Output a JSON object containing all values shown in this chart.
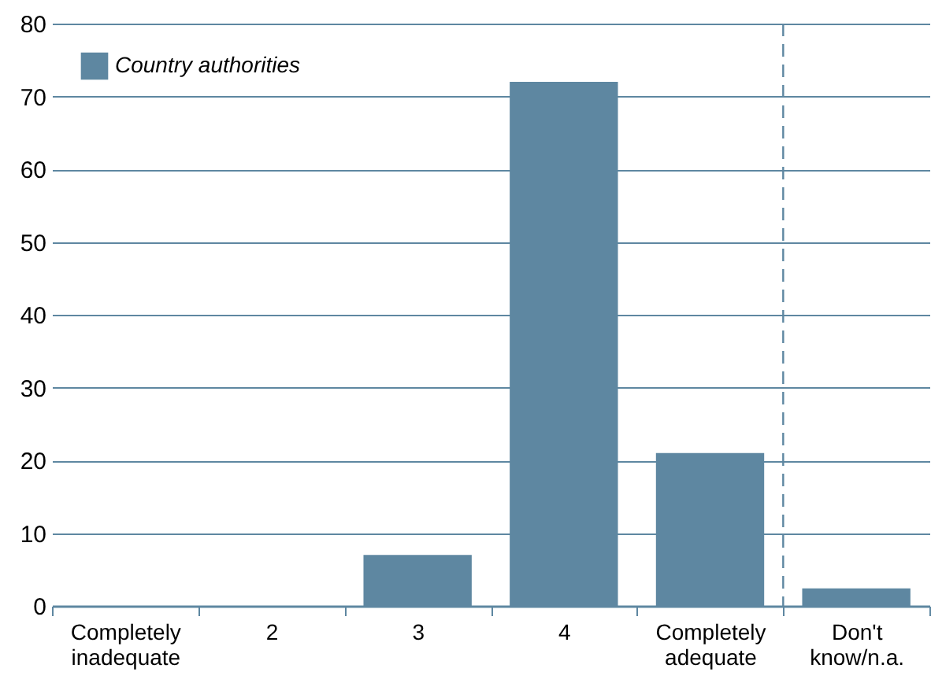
{
  "chart_data": {
    "type": "bar",
    "categories": [
      "Completely inadequate",
      "2",
      "3",
      "4",
      "Completely adequate",
      "Don't know/n.a."
    ],
    "series": [
      {
        "name": "Country authorities",
        "color": "#5e87a1",
        "values": [
          0,
          0,
          7,
          72,
          21,
          2.4
        ]
      }
    ],
    "ylim": [
      0,
      80
    ],
    "yticks": [
      0,
      10,
      20,
      30,
      40,
      50,
      60,
      70,
      80
    ],
    "grid": "y",
    "legend": "top left",
    "ref_lines": [
      {
        "axis": "x",
        "value": "Don't know/n.a.",
        "color": "#5e87a1",
        "line_style": "dashed"
      }
    ]
  }
}
